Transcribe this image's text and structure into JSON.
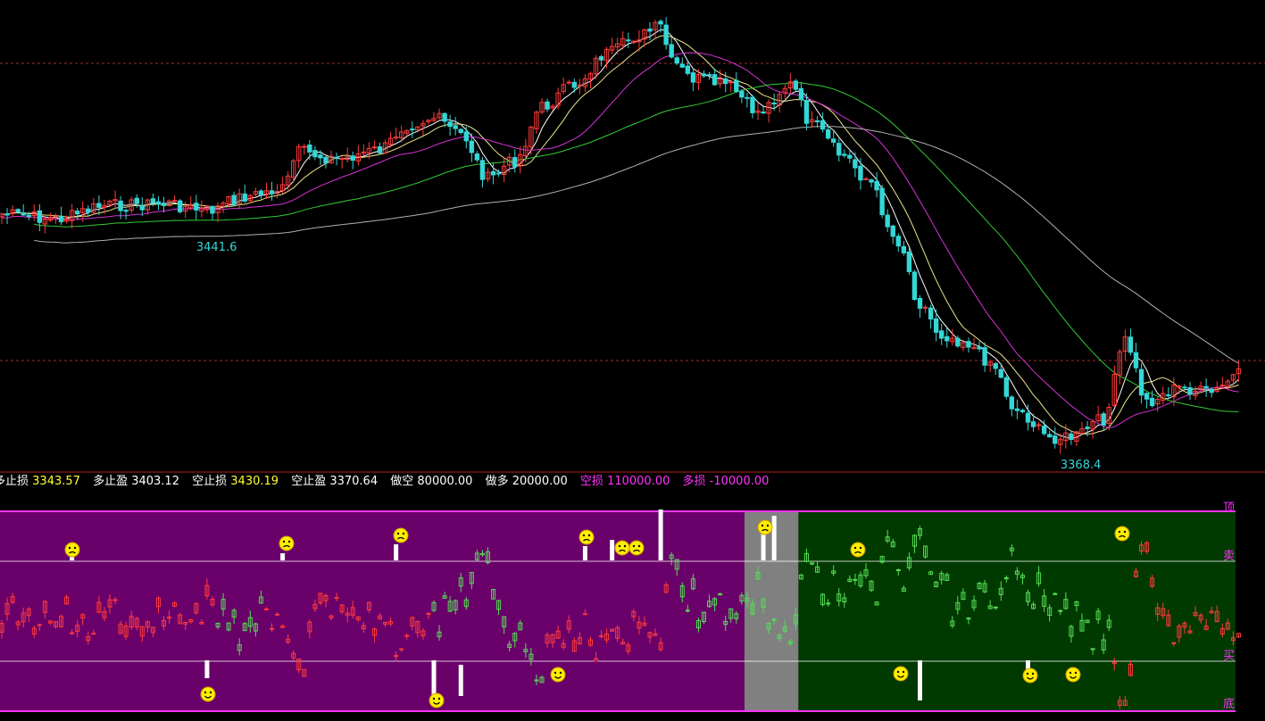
{
  "colors": {
    "background": "#000000",
    "up_candle": "#ff3b3b",
    "down_candle": "#35d6d6",
    "ma5": "#ffffff",
    "ma10": "#f0e68c",
    "ma20": "#d633d6",
    "ma60": "#33cc33",
    "ma120": "#b0b0b0",
    "hline_dashed": "#a52a2a",
    "osc_purple": "#6a006a",
    "osc_gray": "#808080",
    "osc_green": "#003a00",
    "osc_border": "#ff33ff",
    "price_label": "#35d6d6",
    "info_yellow": "#ffff33",
    "info_white": "#ffffff",
    "info_magenta": "#ff33ff"
  },
  "icons": {
    "sell_signal": "frown-face-icon",
    "buy_signal": "smile-face-icon"
  },
  "info_bar": [
    {
      "label": "多止损",
      "value": "3343.57",
      "value_color": "yellow",
      "label_color": "white"
    },
    {
      "label": "多止盈",
      "value": "3403.12",
      "value_color": "white",
      "label_color": "white"
    },
    {
      "label": "空止损",
      "value": "3430.19",
      "value_color": "yellow",
      "label_color": "white"
    },
    {
      "label": "空止盈",
      "value": "3370.64",
      "value_color": "white",
      "label_color": "white"
    },
    {
      "label": "做空",
      "value": "80000.00",
      "value_color": "white",
      "label_color": "white"
    },
    {
      "label": "做多",
      "value": "20000.00",
      "value_color": "white",
      "label_color": "white"
    },
    {
      "label": "空损",
      "value": "110000.00",
      "value_color": "magenta",
      "label_color": "magenta"
    },
    {
      "label": "多损",
      "value": "-10000.00",
      "value_color": "magenta",
      "label_color": "magenta"
    }
  ],
  "osc_labels": {
    "top": "顶",
    "sell": "卖",
    "buy": "买",
    "bottom": "底"
  },
  "chart_data": [
    {
      "type": "candlestick",
      "title": "",
      "grid": false,
      "annotations": [
        {
          "text": "3441.6",
          "index": 38,
          "position": "below-low"
        },
        {
          "text": "3368.4",
          "index": 198,
          "position": "below-low"
        }
      ],
      "moving_averages": [
        "MA5",
        "MA10",
        "MA20",
        "MA60",
        "MA120"
      ]
    },
    {
      "type": "bar",
      "title": "",
      "zones": [
        {
          "from": 0,
          "to": 138,
          "color": "purple"
        },
        {
          "from": 138,
          "to": 148,
          "color": "gray"
        },
        {
          "from": 148,
          "to": 230,
          "color": "green"
        }
      ],
      "levels": [
        "顶",
        "卖",
        "买",
        "底"
      ]
    }
  ]
}
